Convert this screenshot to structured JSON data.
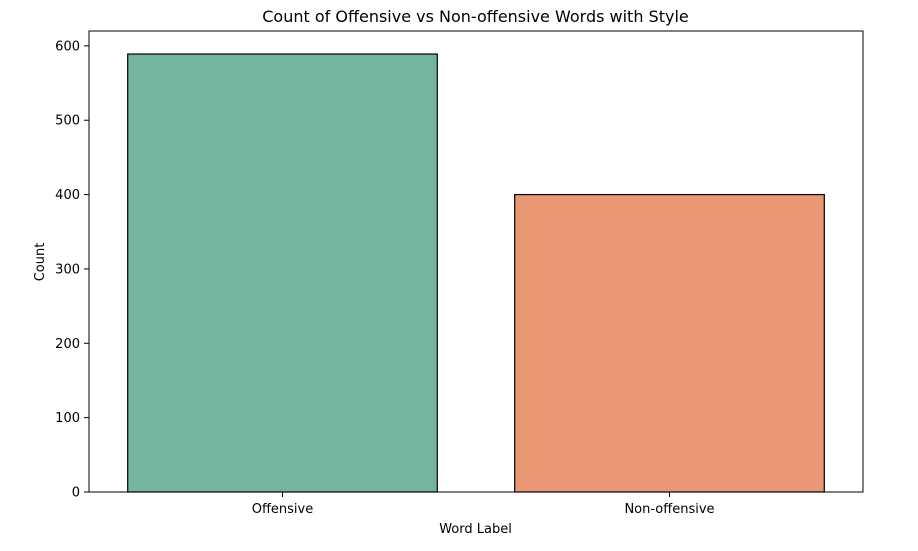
{
  "chart_data": {
    "type": "bar",
    "title": "Count of Offensive vs Non-offensive Words with Style",
    "xlabel": "Word Label",
    "ylabel": "Count",
    "categories": [
      "Offensive",
      "Non-offensive"
    ],
    "values": [
      589,
      400
    ],
    "colors": [
      "#73b5a1",
      "#e99775"
    ],
    "edge_color": "#000000",
    "ylim": [
      0,
      620
    ],
    "yticks": [
      0,
      100,
      200,
      300,
      400,
      500,
      600
    ],
    "grid": false,
    "legend": "none"
  }
}
